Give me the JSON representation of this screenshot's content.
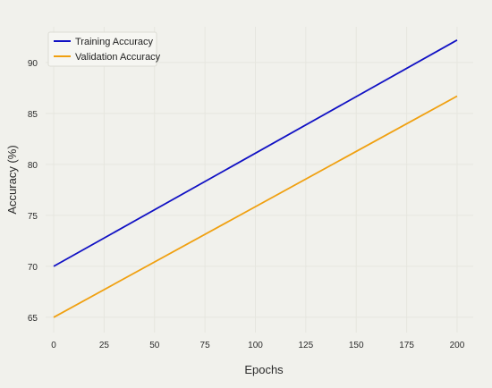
{
  "chart_data": {
    "type": "line",
    "title": "",
    "xlabel": "Epochs",
    "ylabel": "Accuracy (%)",
    "xlim": [
      -4,
      208
    ],
    "ylim": [
      63.5,
      93.5
    ],
    "x_ticks": [
      0,
      25,
      50,
      75,
      100,
      125,
      150,
      175,
      200
    ],
    "y_ticks": [
      65,
      70,
      75,
      80,
      85,
      90
    ],
    "grid": true,
    "legend_position": "top-left",
    "series": [
      {
        "name": "Training Accuracy",
        "color": "#1111c4",
        "x": [
          0,
          200
        ],
        "y": [
          70,
          92.2
        ]
      },
      {
        "name": "Validation Accuracy",
        "color": "#f0a010",
        "x": [
          0,
          200
        ],
        "y": [
          65,
          86.7
        ]
      }
    ]
  }
}
